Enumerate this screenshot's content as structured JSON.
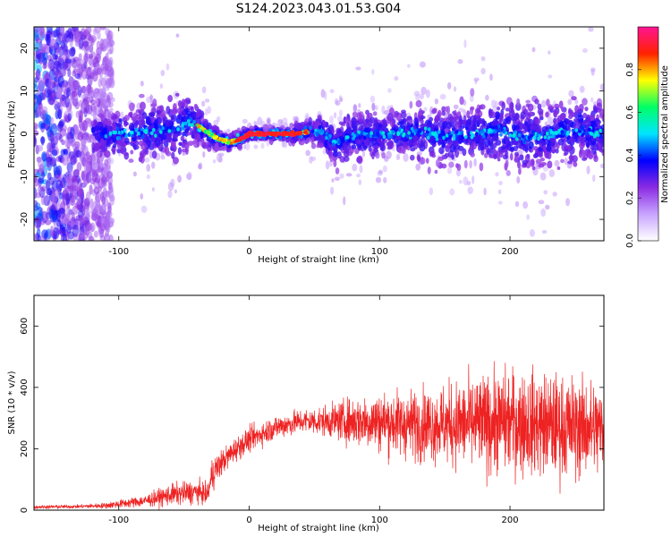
{
  "title": "S124.2023.043.01.53.G04",
  "colors": {
    "snr_line": "#ee2222",
    "background": "#ffffff"
  },
  "chart_data": [
    {
      "type": "heatmap",
      "name": "spectrogram",
      "xlabel": "Height of straight line (km)",
      "ylabel": "Frequency (Hz)",
      "xlim": [
        -165,
        272
      ],
      "ylim": [
        -25,
        25
      ],
      "xticks": [
        -100,
        0,
        100,
        200
      ],
      "yticks": [
        -20,
        -10,
        0,
        10,
        20
      ],
      "colorbar": {
        "label": "Normalized spectral amplitude",
        "range": [
          0.0,
          1.0
        ],
        "ticks": [
          0.0,
          0.2,
          0.4,
          0.6,
          0.8
        ],
        "colormap": [
          "#ffffff",
          "#c8a4ff",
          "#8a2be2",
          "#0000ff",
          "#00e5ff",
          "#00ff66",
          "#ffff00",
          "#ff2200",
          "#ff1493"
        ]
      },
      "signal_ridge": {
        "x": [
          -120,
          -100,
          -80,
          -60,
          -50,
          -45,
          -35,
          -25,
          -15,
          -5,
          0,
          10,
          25,
          35,
          45,
          55,
          65,
          75,
          90,
          110,
          130,
          150,
          170,
          190,
          210,
          230,
          250,
          270
        ],
        "y": [
          0,
          0,
          0.5,
          1,
          2,
          3,
          1,
          -1,
          -2,
          -1,
          0,
          0,
          0,
          0,
          0.5,
          1,
          -2,
          -1,
          0,
          0,
          0.5,
          -0.5,
          0,
          1,
          -1,
          0,
          1,
          0
        ],
        "spread": [
          3,
          4,
          5,
          5,
          6,
          5,
          3,
          2,
          1.5,
          1.5,
          1,
          1,
          1,
          1.5,
          2,
          3,
          4,
          4,
          4,
          4,
          5,
          5,
          5,
          6,
          6,
          6,
          6,
          5
        ]
      },
      "noise_region_x": [
        -165,
        -115
      ]
    },
    {
      "type": "line",
      "name": "snr",
      "xlabel": "Height of straight line (km)",
      "ylabel": "SNR (10 * v/v)",
      "xlim": [
        -165,
        272
      ],
      "ylim": [
        0,
        700
      ],
      "xticks": [
        -100,
        0,
        100,
        200
      ],
      "yticks": [
        0,
        200,
        400,
        600
      ],
      "envelope": {
        "x": [
          -165,
          -130,
          -110,
          -80,
          -60,
          -40,
          -32,
          -28,
          -20,
          -10,
          0,
          20,
          40,
          60,
          80,
          100,
          120,
          140,
          160,
          180,
          200,
          220,
          240,
          260,
          272
        ],
        "mean": [
          10,
          12,
          15,
          30,
          50,
          60,
          50,
          120,
          160,
          200,
          230,
          270,
          290,
          290,
          290,
          290,
          280,
          280,
          280,
          280,
          290,
          280,
          270,
          270,
          260
        ],
        "amplitude": [
          6,
          6,
          10,
          20,
          35,
          40,
          30,
          60,
          40,
          40,
          40,
          40,
          40,
          50,
          80,
          100,
          110,
          120,
          140,
          160,
          170,
          170,
          170,
          160,
          150
        ]
      }
    }
  ]
}
